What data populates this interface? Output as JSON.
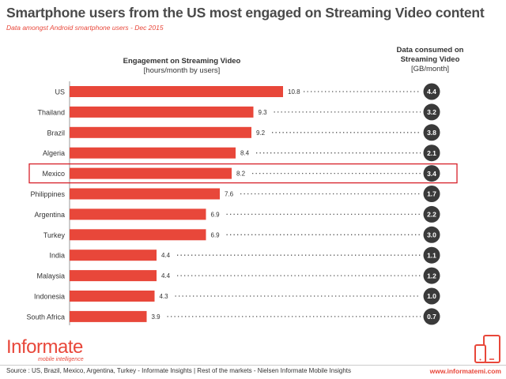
{
  "header": {
    "title": "Smartphone users from the US most engaged on Streaming Video content",
    "subtitle": "Data amongst Android smartphone users - Dec 2015"
  },
  "columns": {
    "engagement_title": "Engagement on Streaming Video",
    "engagement_unit": "[hours/month by users]",
    "data_title_1": "Data consumed on",
    "data_title_2": "Streaming Video",
    "data_unit": "[GB/month]"
  },
  "chart_data": {
    "type": "bar",
    "categories": [
      "US",
      "Thailand",
      "Brazil",
      "Algeria",
      "Mexico",
      "Philippines",
      "Argentina",
      "Turkey",
      "India",
      "Malaysia",
      "Indonesia",
      "South Africa"
    ],
    "series": [
      {
        "values": [
          10.8,
          9.3,
          9.2,
          8.4,
          8.2,
          7.6,
          6.9,
          6.9,
          4.4,
          4.4,
          4.3,
          3.9
        ]
      },
      {
        "values": [
          4.4,
          3.2,
          3.8,
          2.1,
          3.4,
          1.7,
          2.2,
          3.0,
          1.1,
          1.2,
          1.0,
          0.7
        ]
      }
    ],
    "value_labels": [
      "10.8",
      "9.3",
      "9.2",
      "8.4",
      "8.2",
      "7.6",
      "6.9",
      "6.9",
      "4.4",
      "4.4",
      "4.3",
      "3.9"
    ],
    "data_labels": [
      "4.4",
      "3.2",
      "3.8",
      "2.1",
      "3.4",
      "1.7",
      "2.2",
      "3.0",
      "1.1",
      "1.2",
      "1.0",
      "0.7"
    ],
    "highlight": "Mexico",
    "bar_color": "#e8473a",
    "badge_color": "#3a3a3a",
    "highlight_color": "#d7212a"
  },
  "footer": {
    "logo": "Informate",
    "logo_tagline": "mobile intelligence",
    "source": "Source : US, Brazil, Mexico, Argentina, Turkey - Informate Insights | Rest of the markets - Nielsen Informate Mobile Insights",
    "website": "www.informatemi.com"
  }
}
